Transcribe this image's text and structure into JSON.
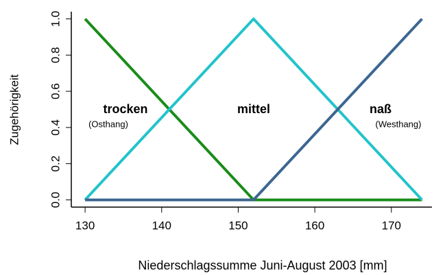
{
  "chart_data": {
    "type": "line",
    "x_label": "Niederschlagssumme Juni-August 2003 [mm]",
    "y_label": "Zugehörigkeit",
    "x": [
      130,
      152,
      174
    ],
    "series": [
      {
        "name": "trocken",
        "color": "#1a8c1a",
        "values": [
          1,
          0,
          0
        ]
      },
      {
        "name": "mittel",
        "color": "#22c3cb",
        "values": [
          0,
          1,
          0
        ]
      },
      {
        "name": "naß",
        "color": "#3c6690",
        "values": [
          0,
          0,
          1
        ]
      }
    ],
    "annotations": [
      "(Osthang)",
      "(Westhang)"
    ],
    "xlim": [
      128.2,
      175.3
    ],
    "xticks": [
      130,
      140,
      150,
      160,
      170
    ],
    "ylim": [
      -0.04,
      1.04
    ],
    "yticks": [
      {
        "value": 0,
        "label": "0.0"
      },
      0.2,
      0.4,
      0.6,
      0.8,
      {
        "value": 1,
        "label": "1.0"
      }
    ]
  }
}
